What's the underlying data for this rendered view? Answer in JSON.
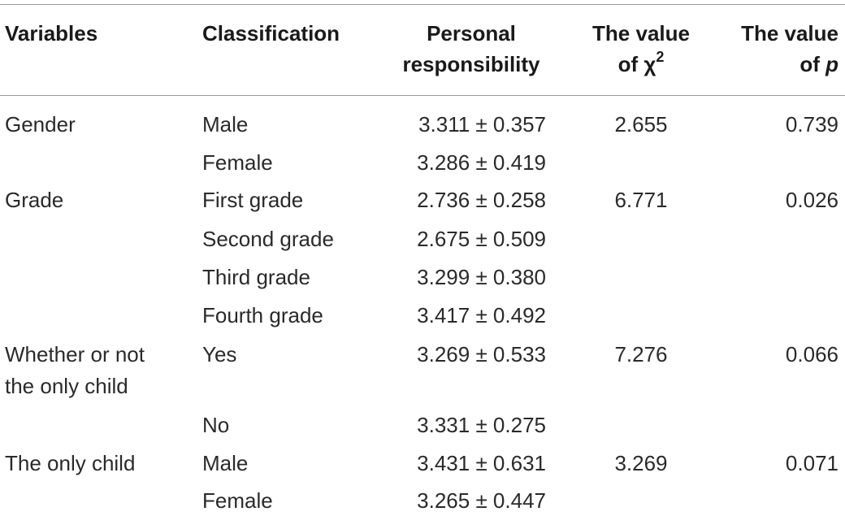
{
  "header": {
    "variables": "Variables",
    "classification": "Classification",
    "personal_line1": "Personal",
    "personal_line2": "responsibility",
    "chi_line1": "The value",
    "chi_line2_prefix": "of χ",
    "chi_sup": "2",
    "p_line1": "The value",
    "p_line2_prefix": "of ",
    "p_symbol": "p"
  },
  "rows": [
    {
      "variable": "Gender",
      "classification": "Male",
      "personal": "3.311 ± 0.357",
      "chi": "2.655",
      "p": "0.739"
    },
    {
      "variable": "",
      "classification": "Female",
      "personal": "3.286 ± 0.419",
      "chi": "",
      "p": ""
    },
    {
      "variable": "Grade",
      "classification": "First grade",
      "personal": "2.736 ± 0.258",
      "chi": "6.771",
      "p": "0.026"
    },
    {
      "variable": "",
      "classification": "Second grade",
      "personal": "2.675 ± 0.509",
      "chi": "",
      "p": ""
    },
    {
      "variable": "",
      "classification": "Third grade",
      "personal": "3.299 ± 0.380",
      "chi": "",
      "p": ""
    },
    {
      "variable": "",
      "classification": "Fourth grade",
      "personal": "3.417 ± 0.492",
      "chi": "",
      "p": ""
    },
    {
      "variable": "Whether or not",
      "variable_line2": "the only child",
      "classification": "Yes",
      "personal": "3.269 ± 0.533",
      "chi": "7.276",
      "p": "0.066"
    },
    {
      "variable": "",
      "classification": "No",
      "personal": "3.331 ± 0.275",
      "chi": "",
      "p": ""
    },
    {
      "variable": "The only child",
      "classification": "Male",
      "personal": "3.431 ± 0.631",
      "chi": "3.269",
      "p": "0.071"
    },
    {
      "variable": "",
      "classification": "Female",
      "personal": "3.265 ± 0.447",
      "chi": "",
      "p": ""
    }
  ]
}
